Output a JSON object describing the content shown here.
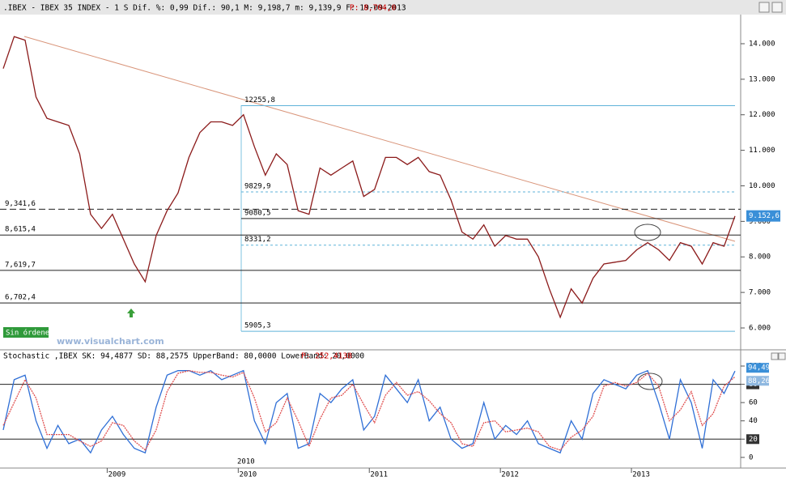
{
  "header": {
    "title": ".IBEX - IBEX 35 INDEX - 1 S Dif. %: 0,99 Dif.: 90,1 M: 9,198,7 m: 9,139,9 F: 19-09-2013",
    "price": "P: 8,704,0"
  },
  "badge": "Sin órdenes",
  "watermark": "www.visualchart.com",
  "cursor_label": "2010",
  "chart_data": [
    {
      "type": "line",
      "categories": [
        null,
        null,
        null,
        null,
        null,
        null,
        null,
        null,
        null,
        null,
        null,
        "2009",
        null,
        null,
        null,
        null,
        null,
        null,
        null,
        null,
        null,
        null,
        null,
        "2010",
        null,
        null,
        null,
        null,
        null,
        null,
        null,
        null,
        null,
        null,
        null,
        "2011",
        null,
        null,
        null,
        null,
        null,
        null,
        null,
        null,
        null,
        null,
        null,
        "2012",
        null,
        null,
        null,
        null,
        null,
        null,
        null,
        null,
        null,
        null,
        null,
        "2013",
        null,
        null,
        null,
        null,
        null,
        null,
        null,
        null
      ],
      "series": [
        {
          "color": "#8b1a1a",
          "values": [
            13300,
            14200,
            14100,
            12500,
            11900,
            11800,
            11700,
            10900,
            9200,
            8800,
            9200,
            8500,
            7800,
            7300,
            8600,
            9300,
            9800,
            10800,
            11500,
            11800,
            11800,
            11700,
            12000,
            11100,
            10300,
            10900,
            10600,
            9300,
            9200,
            10500,
            10300,
            10500,
            10700,
            9700,
            9900,
            10800,
            10800,
            10600,
            10800,
            10400,
            10300,
            9600,
            8700,
            8500,
            8900,
            8300,
            8600,
            8500,
            8500,
            8000,
            7100,
            6300,
            7100,
            6700,
            7400,
            7800,
            7850,
            7900,
            8200,
            8400,
            8200,
            7900,
            8400,
            8300,
            7800,
            8400,
            8300,
            9150
          ]
        }
      ],
      "ylim": [
        5430,
        14820
      ],
      "yticks": [
        {
          "value": 6000,
          "label": "6.000"
        },
        {
          "value": 7000,
          "label": "7.000"
        },
        {
          "value": 8000,
          "label": "8.000"
        },
        {
          "value": 9000,
          "label": "9.000"
        },
        {
          "value": 10000,
          "label": "10.000"
        },
        {
          "value": 11000,
          "label": "11.000"
        },
        {
          "value": 12000,
          "label": "12.000"
        },
        {
          "value": 13000,
          "label": "13.000"
        },
        {
          "value": 14000,
          "label": "14.000"
        }
      ],
      "levels": [
        {
          "value": 9341.6,
          "label": "9,341,6"
        },
        {
          "value": 8615.4,
          "label": "8,615,4"
        },
        {
          "value": 7619.7,
          "label": "7,619,7"
        },
        {
          "value": 6702.4,
          "label": "6,702,4"
        }
      ],
      "fibonacci": [
        {
          "value": 12255.8,
          "label": "12255,8"
        },
        {
          "value": 9829.9,
          "label": "9829,9"
        },
        {
          "value": 9080.5,
          "label": "9080,5"
        },
        {
          "value": 8331.2,
          "label": "8331,2"
        },
        {
          "value": 5905.3,
          "label": "5905,3"
        }
      ],
      "last_price": {
        "value": 9152.6,
        "label": "9.152,6"
      }
    },
    {
      "type": "line",
      "title": "Stochastic ,IBEX SK: 94,4877 SD: 88,2575 UpperBand: 80,0000 LowerBand: 20,0000",
      "price": "P: 252,4138",
      "series": [
        {
          "color": "#2f6fd6",
          "values": [
            30,
            85,
            90,
            40,
            10,
            35,
            15,
            20,
            5,
            30,
            45,
            25,
            10,
            5,
            55,
            90,
            95,
            95,
            90,
            95,
            85,
            90,
            95,
            40,
            15,
            60,
            70,
            10,
            15,
            70,
            60,
            75,
            85,
            30,
            45,
            90,
            75,
            60,
            85,
            40,
            55,
            20,
            10,
            15,
            60,
            20,
            35,
            25,
            40,
            15,
            10,
            5,
            40,
            20,
            70,
            85,
            80,
            75,
            90,
            95,
            60,
            20,
            85,
            60,
            10,
            85,
            70,
            94.49
          ],
          "value_labels": [
            null,
            null,
            null,
            null,
            null,
            null,
            null,
            null,
            null,
            null,
            null,
            null,
            null,
            null,
            null,
            null,
            null,
            null,
            null,
            null,
            null,
            null,
            null,
            null,
            null,
            null,
            null,
            null,
            null,
            null,
            null,
            null,
            null,
            null,
            null,
            null,
            null,
            null,
            null,
            null,
            null,
            null,
            null,
            null,
            null,
            null,
            null,
            null,
            null,
            null,
            null,
            null,
            null,
            null,
            null,
            null,
            null,
            null,
            null,
            null,
            null,
            null,
            null,
            null,
            null,
            null,
            null,
            "94,49"
          ]
        },
        {
          "color": "#e05050",
          "values": [
            35,
            60,
            85,
            65,
            25,
            25,
            25,
            18,
            12,
            18,
            38,
            35,
            18,
            8,
            30,
            72,
            92,
            95,
            93,
            93,
            90,
            88,
            93,
            65,
            28,
            38,
            65,
            40,
            12,
            42,
            65,
            68,
            80,
            58,
            38,
            68,
            82,
            68,
            72,
            62,
            48,
            38,
            15,
            12,
            38,
            40,
            28,
            30,
            32,
            28,
            12,
            8,
            22,
            30,
            45,
            78,
            82,
            78,
            82,
            92,
            78,
            40,
            52,
            72,
            35,
            48,
            78,
            88.26
          ],
          "value_labels": [
            null,
            null,
            null,
            null,
            null,
            null,
            null,
            null,
            null,
            null,
            null,
            null,
            null,
            null,
            null,
            null,
            null,
            null,
            null,
            null,
            null,
            null,
            null,
            null,
            null,
            null,
            null,
            null,
            null,
            null,
            null,
            null,
            null,
            null,
            null,
            null,
            null,
            null,
            null,
            null,
            null,
            null,
            null,
            null,
            null,
            null,
            null,
            null,
            null,
            null,
            null,
            null,
            null,
            null,
            null,
            null,
            null,
            null,
            null,
            null,
            null,
            null,
            null,
            null,
            null,
            null,
            null,
            "88,26"
          ]
        }
      ],
      "ylim": [
        -9,
        108
      ],
      "yticks": [
        0,
        20,
        40,
        60,
        80,
        100
      ],
      "bands": [
        80,
        20
      ]
    }
  ]
}
